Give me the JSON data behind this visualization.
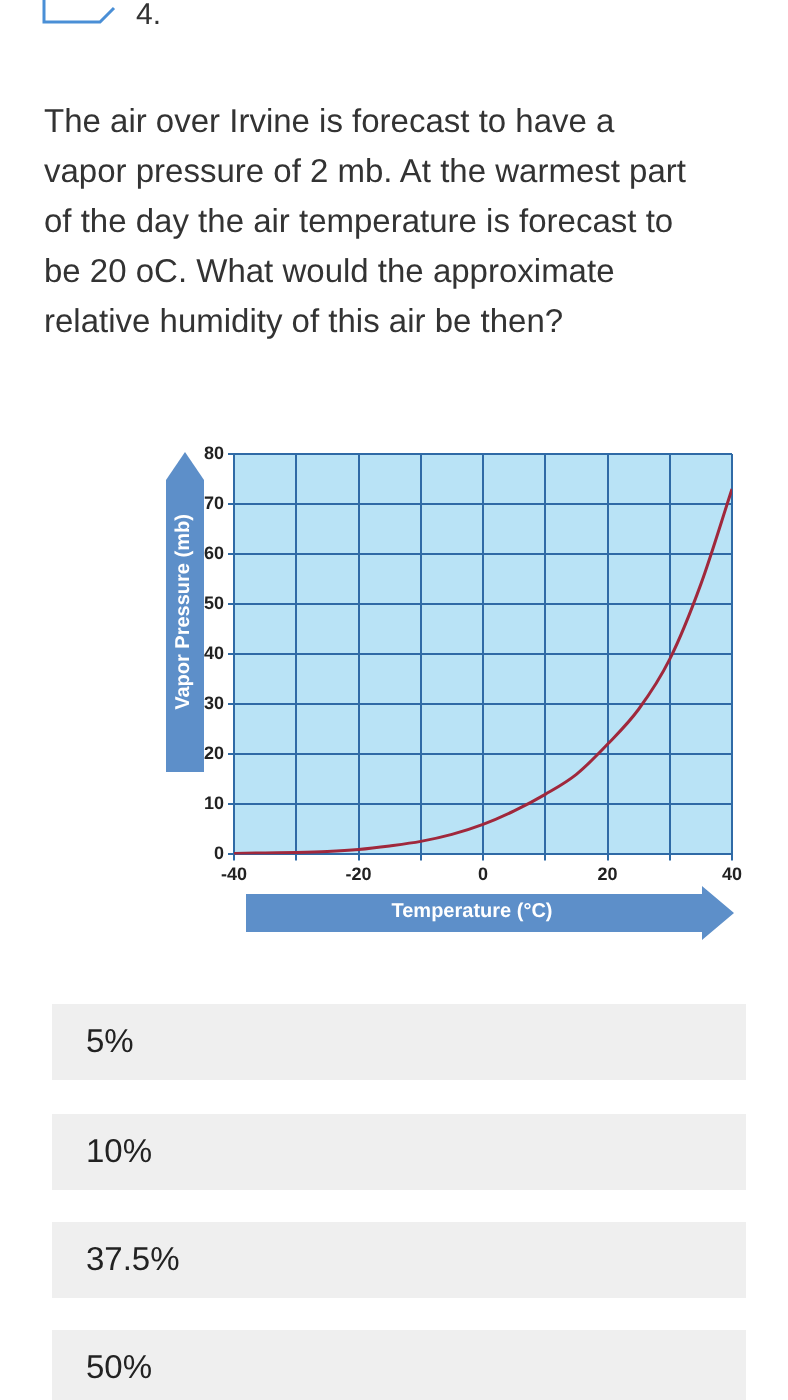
{
  "chart_data": {
    "type": "line",
    "title": "The air over Irvine is forecast to have a vapor pressure of 2 mb. At the warmest part of the day the air temperature is forecast to be 20 oC. What would the approximate relative humidity of this air be then?",
    "xlabel": "Temperature (°C)",
    "ylabel": "Vapor Pressure (mb)",
    "x": [
      -40,
      -35,
      -30,
      -25,
      -20,
      -15,
      -10,
      -5,
      0,
      5,
      10,
      15,
      20,
      25,
      30,
      35,
      40
    ],
    "series": [
      {
        "color": "#a0283c",
        "values": [
          0.2,
          0.3,
          0.4,
          0.6,
          1,
          1.7,
          2.6,
          4,
          6,
          8.7,
          12,
          16,
          22,
          29,
          39,
          54,
          73
        ]
      }
    ],
    "xlim": [
      -40,
      40
    ],
    "xticks": [
      -40,
      {
        "value": -30,
        "label": null
      },
      -20,
      {
        "value": -10,
        "label": null
      },
      0,
      {
        "value": 10,
        "label": null
      },
      20,
      {
        "value": 30,
        "label": null
      },
      40
    ],
    "ylim": [
      0,
      80
    ],
    "yticks": [
      0,
      10,
      20,
      30,
      40,
      50,
      60,
      70,
      80
    ],
    "grid": true,
    "marker": "none",
    "line_style": "solid",
    "annotations": [
      "4.",
      "5%",
      "10%",
      "37.5%",
      "50%"
    ]
  }
}
